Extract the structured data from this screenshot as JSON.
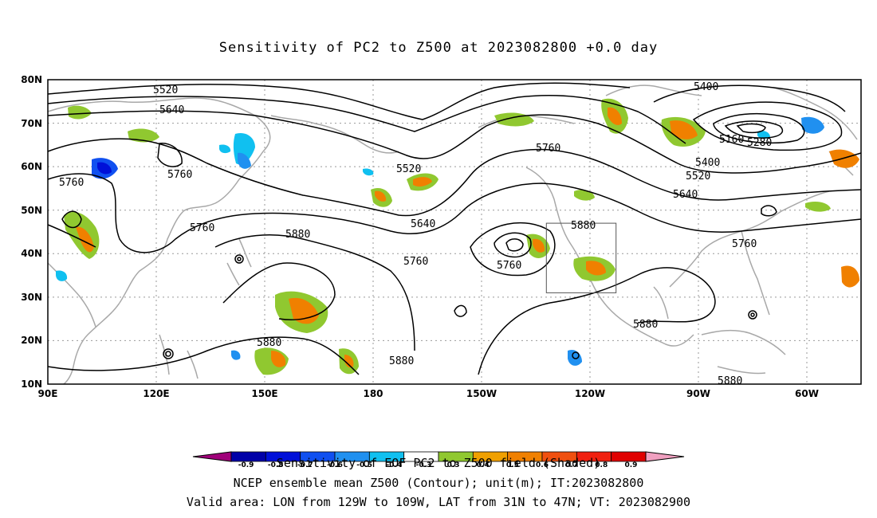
{
  "title": "Sensitivity of PC2 to Z500 at 2023082800 +0.0 day",
  "map": {
    "lat_labels": [
      "80N",
      "70N",
      "60N",
      "50N",
      "40N",
      "30N",
      "20N",
      "10N"
    ],
    "lon_labels": [
      "90E",
      "120E",
      "150E",
      "180",
      "150W",
      "120W",
      "90W",
      "60W"
    ],
    "contour_labels": [
      "5400",
      "5520",
      "5640",
      "5760",
      "5760",
      "5760",
      "5760",
      "5880",
      "5880",
      "5880",
      "5520",
      "5640",
      "5760",
      "5760",
      "5880",
      "5880",
      "5760",
      "5160",
      "5280",
      "5400",
      "5520",
      "5640",
      "5760",
      "5880"
    ],
    "valid_box": {
      "lon_west": -129,
      "lon_east": -109,
      "lat_south": 31,
      "lat_north": 47
    }
  },
  "colorbar": {
    "ticks": [
      "-0.9",
      "-0.8",
      "-0.7",
      "-0.6",
      "-0.5",
      "-0.4",
      "-0.3",
      "0.3",
      "0.4",
      "0.5",
      "0.6",
      "0.7",
      "0.8",
      "0.9"
    ],
    "colors": [
      "#a0007a",
      "#0000a8",
      "#0010d8",
      "#1050f0",
      "#2090f0",
      "#10c0f0",
      "#ffffff",
      "#90c830",
      "#f0a000",
      "#f08000",
      "#f05010",
      "#f02010",
      "#e00000",
      "#f0a0c0"
    ],
    "label": "Sensitivity of EOF PC2 to Z500 field (Shaded)"
  },
  "captions": {
    "line1": "NCEP ensemble mean Z500 (Contour); unit(m); IT:2023082800",
    "line2": "Valid area: LON from 129W to 109W, LAT from 31N to 47N; VT: 2023082900"
  }
}
